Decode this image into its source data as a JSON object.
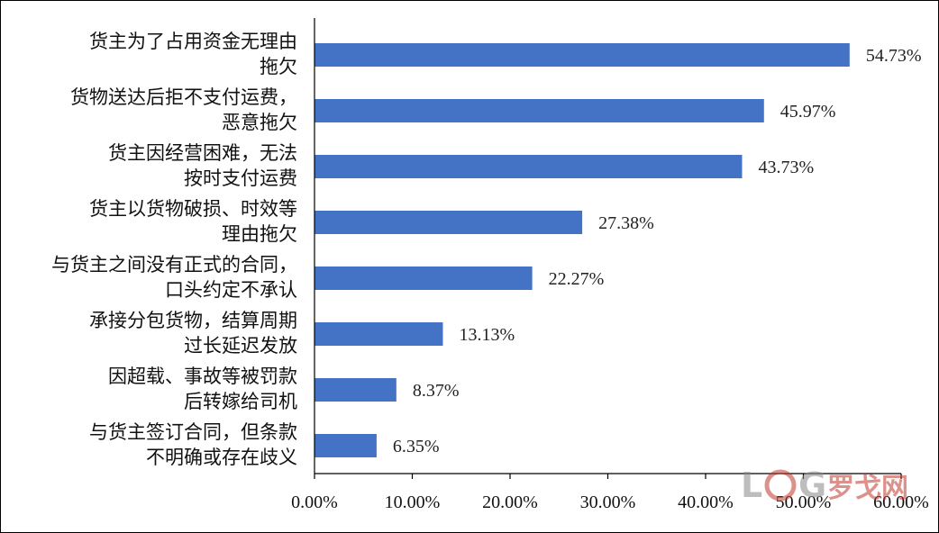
{
  "chart_data": {
    "type": "bar",
    "orientation": "horizontal",
    "categories": [
      [
        "货主为了占用资金无理由",
        "拖欠"
      ],
      [
        "货物送达后拒不支付运费，",
        "恶意拖欠"
      ],
      [
        "货主因经营困难，无法",
        "按时支付运费"
      ],
      [
        "货主以货物破损、时效等",
        "理由拖欠"
      ],
      [
        "与货主之间没有正式的合同，",
        "口头约定不承认"
      ],
      [
        "承接分包货物，结算周期",
        "过长延迟发放"
      ],
      [
        "因超载、事故等被罚款",
        "后转嫁给司机"
      ],
      [
        "与货主签订合同，但条款",
        "不明确或存在歧义"
      ]
    ],
    "values": [
      54.73,
      45.97,
      43.73,
      27.38,
      22.27,
      13.13,
      8.37,
      6.35
    ],
    "value_labels": [
      "54.73%",
      "45.97%",
      "43.73%",
      "27.38%",
      "22.27%",
      "13.13%",
      "8.37%",
      "6.35%"
    ],
    "xlim": [
      0,
      60
    ],
    "xticks": [
      0,
      10,
      20,
      30,
      40,
      50,
      60
    ],
    "xtick_labels": [
      "0.00%",
      "10.00%",
      "20.00%",
      "30.00%",
      "40.00%",
      "50.00%",
      "60.00%"
    ],
    "title": "",
    "xlabel": "",
    "ylabel": "",
    "grid": false,
    "bar_color": "#4472C4"
  },
  "watermark": {
    "text": "LOG罗戈网",
    "color": "#c0392b"
  }
}
